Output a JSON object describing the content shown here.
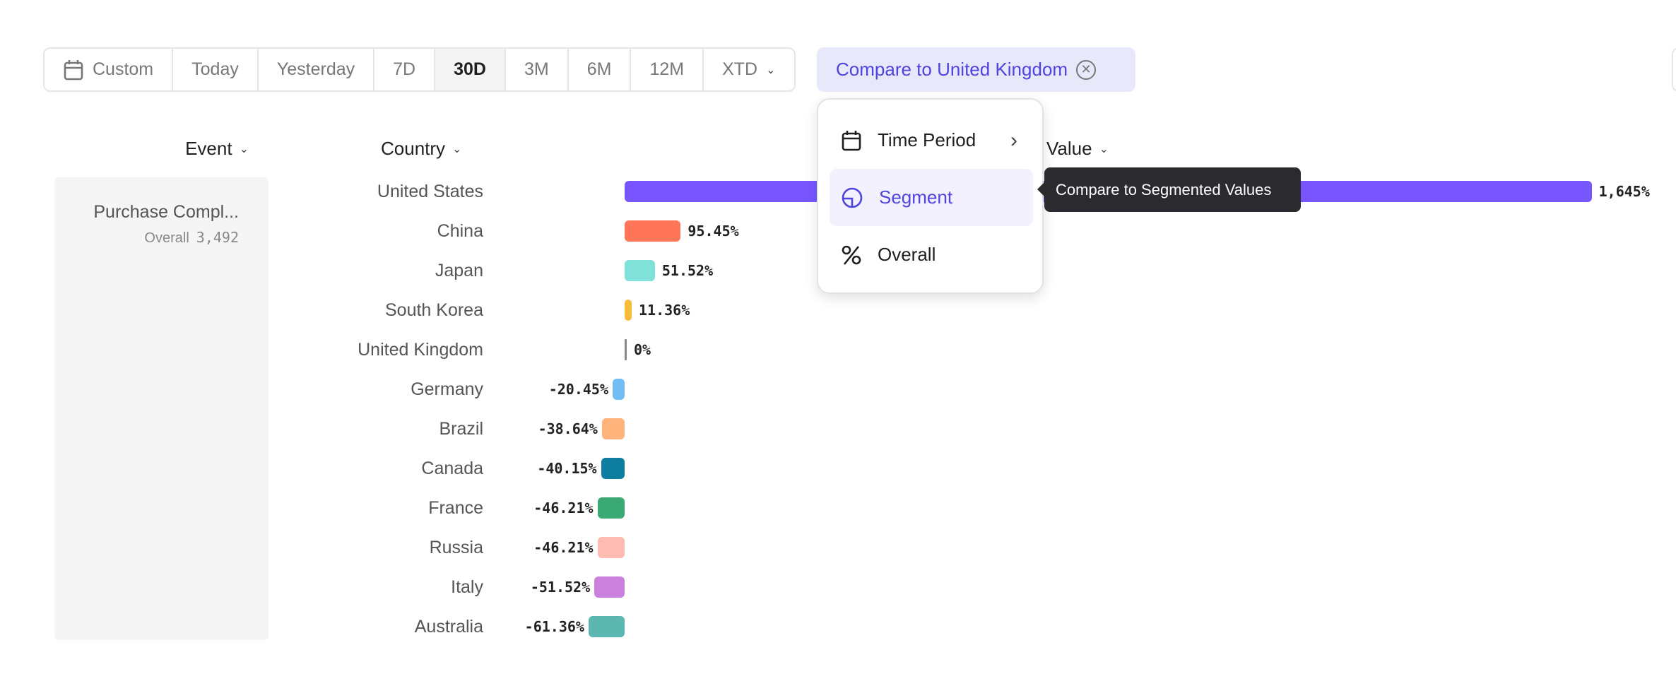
{
  "toolbar": {
    "items": [
      {
        "label": "Custom",
        "icon": "calendar-icon"
      },
      {
        "label": "Today"
      },
      {
        "label": "Yesterday"
      },
      {
        "label": "7D"
      },
      {
        "label": "30D",
        "active": true
      },
      {
        "label": "3M"
      },
      {
        "label": "6M"
      },
      {
        "label": "12M"
      },
      {
        "label": "XTD",
        "dropdown": true
      }
    ]
  },
  "compare_chip": {
    "label": "Compare to United Kingdom",
    "icon": "close-circle-icon"
  },
  "headers": {
    "event": "Event",
    "country": "Country",
    "value": "Value"
  },
  "event_panel": {
    "name": "Purchase Compl...",
    "sub_label": "Overall",
    "sub_value": "3,492"
  },
  "chart_data": {
    "type": "bar",
    "orientation": "horizontal",
    "categories": [
      "United States",
      "China",
      "Japan",
      "South Korea",
      "United Kingdom",
      "Germany",
      "Brazil",
      "Canada",
      "France",
      "Russia",
      "Italy",
      "Australia"
    ],
    "values": [
      1645,
      95.45,
      51.52,
      11.36,
      0,
      -20.45,
      -38.64,
      -40.15,
      -46.21,
      -46.21,
      -51.52,
      -61.36
    ],
    "labels": [
      "1,645%",
      "95.45%",
      "51.52%",
      "11.36%",
      "0%",
      "-20.45%",
      "-38.64%",
      "-40.15%",
      "-46.21%",
      "-46.21%",
      "-51.52%",
      "-61.36%"
    ],
    "colors": [
      "#7856FF",
      "#FF7557",
      "#80E1D9",
      "#F8BC3B",
      "#888888",
      "#72BEF4",
      "#FFB27A",
      "#0D7EA0",
      "#3BA974",
      "#FEBBB2",
      "#CA80DC",
      "#5BB7AF"
    ]
  },
  "menu": {
    "items": [
      {
        "label": "Time Period",
        "icon": "calendar-icon",
        "submenu": true
      },
      {
        "label": "Segment",
        "icon": "segment-pie-icon",
        "highlighted": true
      },
      {
        "label": "Overall",
        "icon": "percent-icon"
      }
    ]
  },
  "tooltip": {
    "text": "Compare to Segmented Values"
  }
}
